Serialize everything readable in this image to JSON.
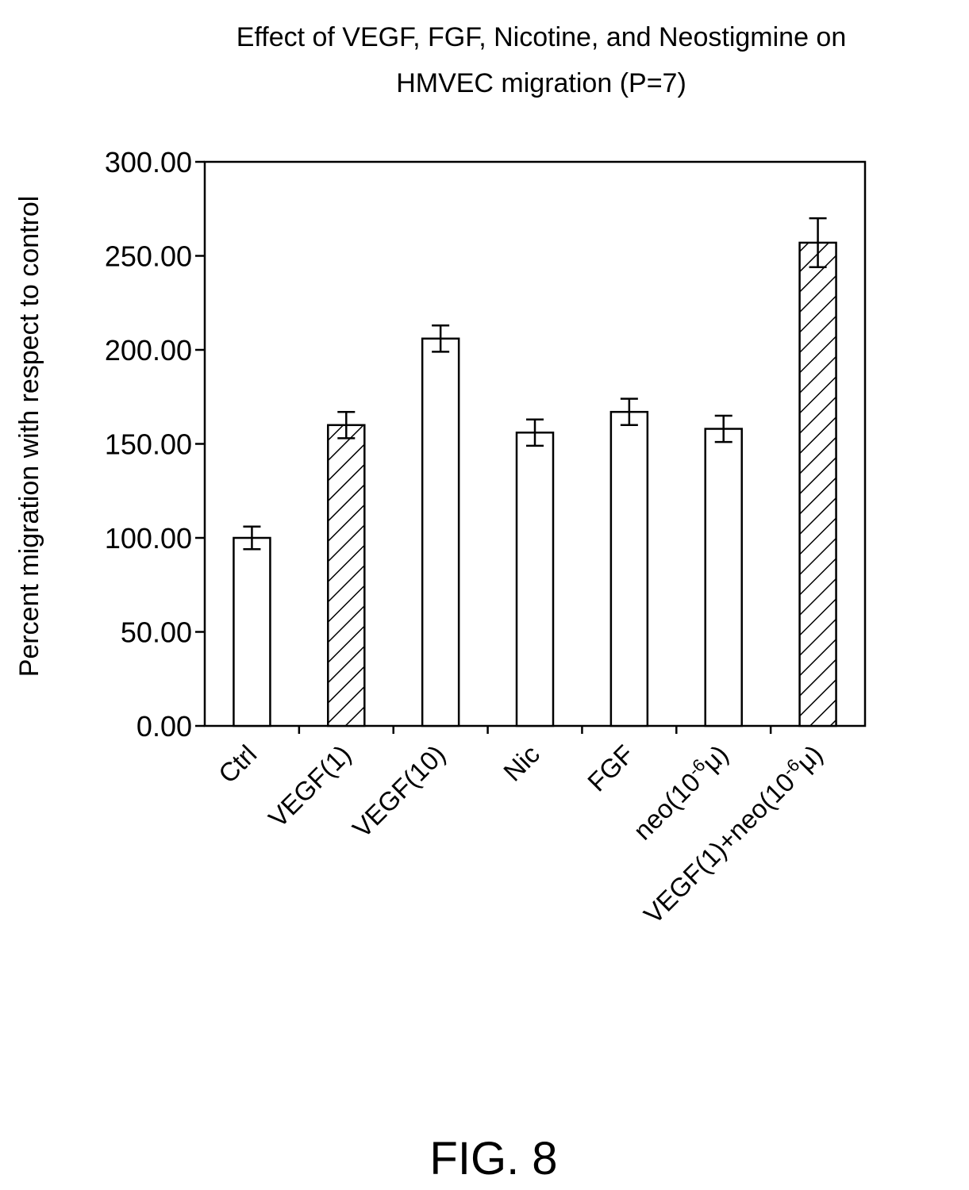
{
  "chart_data": {
    "type": "bar",
    "title_lines": [
      "Effect of VEGF, FGF, Nicotine, and Neostigmine on",
      "HMVEC migration (P=7)"
    ],
    "xlabel": "",
    "ylabel": "Percent migration with respect to control",
    "ylim": [
      0,
      300
    ],
    "yticks": [
      0,
      50,
      100,
      150,
      200,
      250,
      300
    ],
    "ytick_labels": [
      "0.00",
      "50.00",
      "100.00",
      "150.00",
      "200.00",
      "250.00",
      "300.00"
    ],
    "categories": [
      {
        "base": "Ctrl",
        "sup": "",
        "tail": ""
      },
      {
        "base": "VEGF(1)",
        "sup": "",
        "tail": ""
      },
      {
        "base": "VEGF(10)",
        "sup": "",
        "tail": ""
      },
      {
        "base": "Nic",
        "sup": "",
        "tail": ""
      },
      {
        "base": "FGF",
        "sup": "",
        "tail": ""
      },
      {
        "base": "neo(10",
        "sup": "-6",
        "tail": "μ)"
      },
      {
        "base": "VEGF(1)+neo(10",
        "sup": "-6",
        "tail": "μ)"
      }
    ],
    "values": [
      100,
      160,
      206,
      156,
      167,
      158,
      257
    ],
    "errors": [
      6,
      7,
      7,
      7,
      7,
      7,
      13
    ],
    "hatched": [
      false,
      true,
      false,
      false,
      false,
      false,
      true
    ],
    "grid": false
  },
  "figure_label": "FIG. 8"
}
